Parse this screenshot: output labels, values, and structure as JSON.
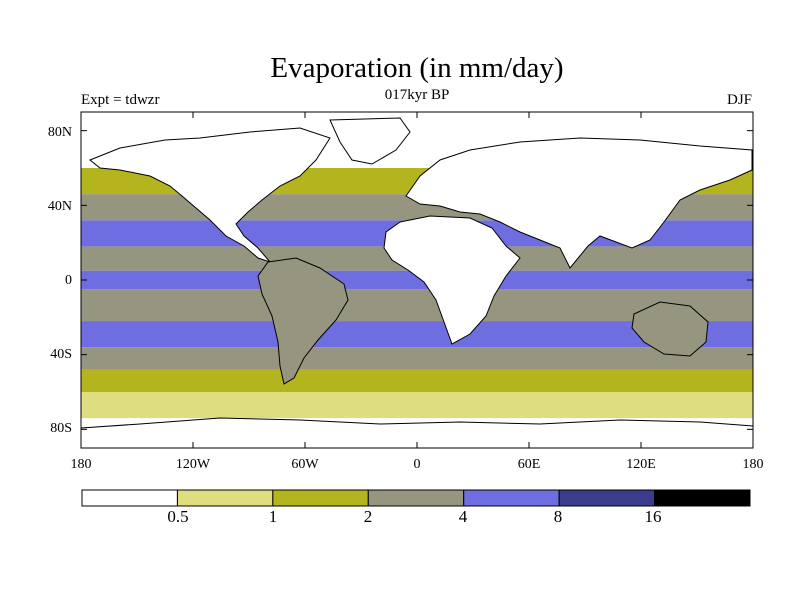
{
  "title": "Evaporation (in mm/day)",
  "left_label": "Expt = tdwzr",
  "center_label": "017kyr BP",
  "right_label": "DJF",
  "axes": {
    "lon_ticks": [
      "180",
      "120W",
      "60W",
      "0",
      "60E",
      "120E",
      "180"
    ],
    "lat_ticks": [
      "80N",
      "40N",
      "0",
      "40S",
      "80S"
    ]
  },
  "colorbar": {
    "labels": [
      "0.5",
      "1",
      "2",
      "4",
      "8",
      "16"
    ],
    "colors": [
      "#ffffff",
      "#dede80",
      "#b4b41e",
      "#969680",
      "#6e6ee0",
      "#3c3c8c",
      "#000000"
    ]
  },
  "chart_data": {
    "type": "heatmap",
    "title": "Evaporation (in mm/day)",
    "subtitle": "017kyr BP",
    "xlabel": "",
    "ylabel": "",
    "xlim": [
      -180,
      180
    ],
    "ylim": [
      -90,
      90
    ],
    "levels": [
      0.5,
      1,
      2,
      4,
      8,
      16
    ],
    "bands": [
      {
        "lat": [
          -90,
          -74
        ],
        "class": 0
      },
      {
        "lat": [
          -74,
          -60
        ],
        "class": 1
      },
      {
        "lat": [
          -60,
          -48
        ],
        "class": 2
      },
      {
        "lat": [
          -48,
          -36
        ],
        "class": 3
      },
      {
        "lat": [
          -36,
          -22
        ],
        "class": 4
      },
      {
        "lat": [
          -22,
          -5
        ],
        "class": 3
      },
      {
        "lat": [
          -5,
          5
        ],
        "class": 4
      },
      {
        "lat": [
          5,
          18
        ],
        "class": 3
      },
      {
        "lat": [
          18,
          32
        ],
        "class": 4
      },
      {
        "lat": [
          32,
          46
        ],
        "class": 3
      },
      {
        "lat": [
          46,
          60
        ],
        "class": 2
      },
      {
        "lat": [
          60,
          90
        ],
        "class": 0
      }
    ]
  }
}
